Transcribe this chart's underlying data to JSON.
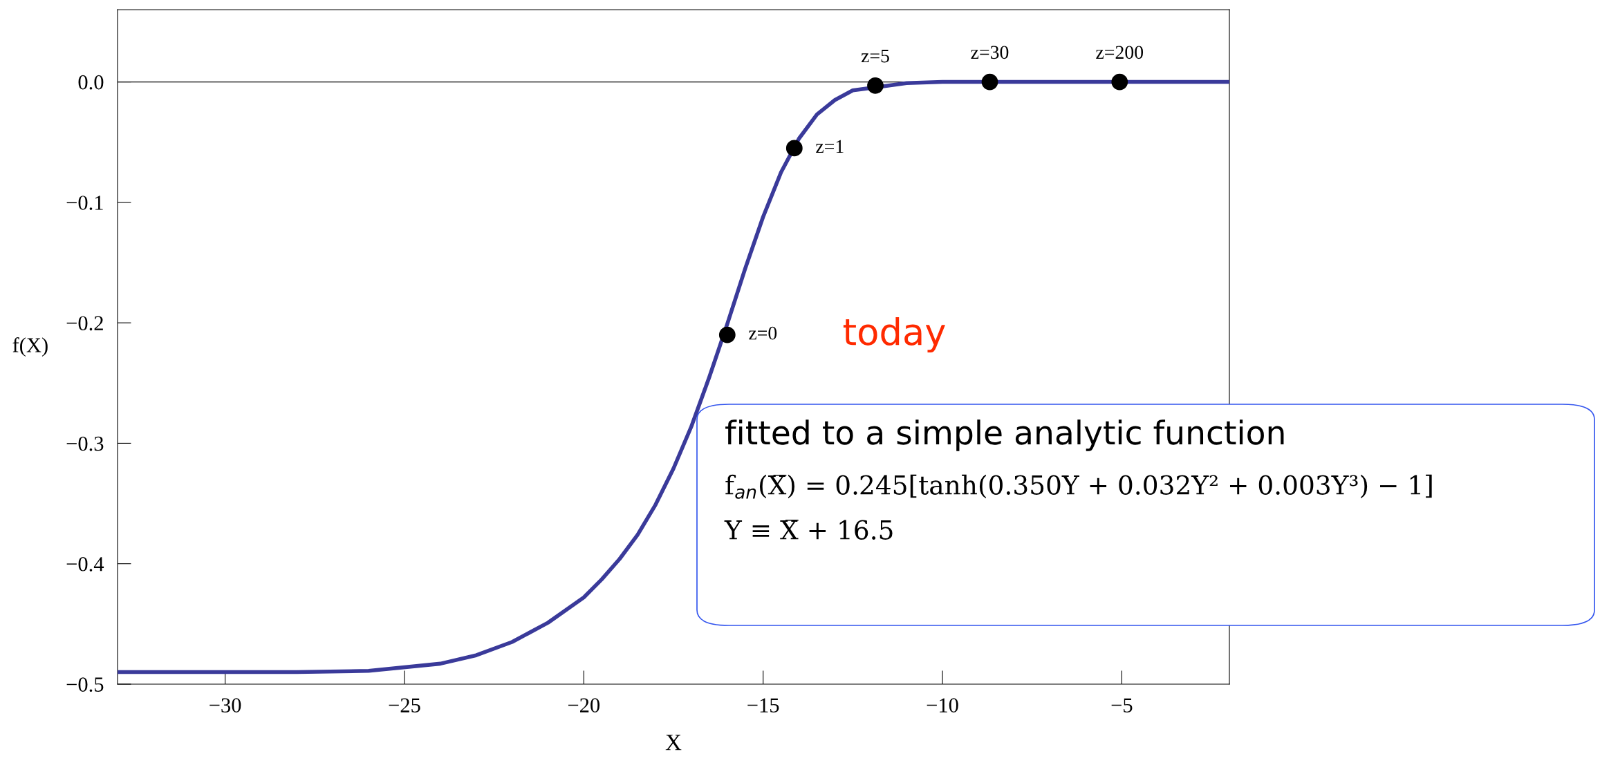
{
  "chart_data": {
    "type": "line",
    "xlabel": "X",
    "ylabel": "f(X)",
    "xlim": [
      -33,
      -2
    ],
    "ylim": [
      -0.5,
      0.06
    ],
    "xticks": [
      {
        "value": -30,
        "label": "−30"
      },
      {
        "value": -25,
        "label": "−25"
      },
      {
        "value": -20,
        "label": "−20"
      },
      {
        "value": -15,
        "label": "−15"
      },
      {
        "value": -10,
        "label": "−10"
      },
      {
        "value": -5,
        "label": "−5"
      }
    ],
    "yticks": [
      {
        "value": -0.5,
        "label": "−0.5"
      },
      {
        "value": -0.4,
        "label": "−0.4"
      },
      {
        "value": -0.3,
        "label": "−0.3"
      },
      {
        "value": -0.2,
        "label": "−0.2"
      },
      {
        "value": -0.1,
        "label": "−0.1"
      },
      {
        "value": 0,
        "label": "0.0"
      }
    ],
    "grid": false,
    "series": [
      {
        "type": "line",
        "color": "#3a3a9a",
        "marker": "none",
        "line_style": "solid",
        "x": [
          -33,
          -28,
          -26,
          -24,
          -23,
          -22,
          -21,
          -20,
          -19.5,
          -19,
          -18.5,
          -18,
          -17.5,
          -17,
          -16.5,
          -16,
          -15.5,
          -15,
          -14.5,
          -14,
          -13.5,
          -13,
          -12.5,
          -11,
          -10,
          -2
        ],
        "values": [
          -0.49,
          -0.49,
          -0.489,
          -0.483,
          -0.476,
          -0.465,
          -0.449,
          -0.428,
          -0.413,
          -0.396,
          -0.376,
          -0.351,
          -0.321,
          -0.286,
          -0.245,
          -0.201,
          -0.155,
          -0.112,
          -0.075,
          -0.047,
          -0.027,
          -0.015,
          -0.007,
          -0.001,
          0,
          0
        ]
      },
      {
        "type": "scatter",
        "color": "#000000",
        "marker": "circle",
        "x": [
          -16.0,
          -14.13,
          -11.87,
          -8.68,
          -5.06
        ],
        "values": [
          -0.21,
          -0.055,
          -0.003,
          0,
          0
        ]
      }
    ],
    "ref_lines": [
      {
        "axis": "y",
        "value": 0,
        "color": "#000000"
      }
    ],
    "annotations": [
      {
        "text": "z=0",
        "x": -16.0,
        "y": -0.21
      },
      {
        "text": "z=1",
        "x": -14.13,
        "y": -0.055
      },
      {
        "text": "z=5",
        "x": -11.87,
        "y": -0.003
      },
      {
        "text": "z=30",
        "x": -8.68,
        "y": 0
      },
      {
        "text": "z=200",
        "x": -5.06,
        "y": 0
      },
      "today",
      "fitted to a simple analytic function",
      "f$_{an}$(X̅) = 0.245[tanh(0.350Y + 0.032Y² + 0.003Y³) − 1]",
      "Y ≡ X̅ + 16.5"
    ]
  }
}
